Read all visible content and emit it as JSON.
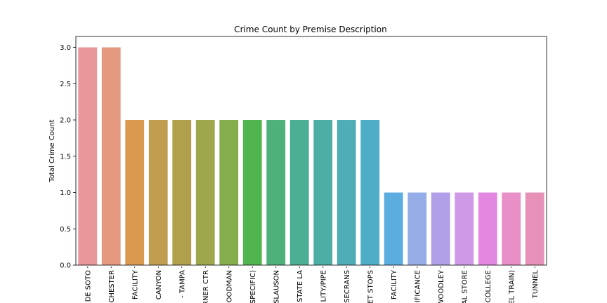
{
  "chart_data": {
    "type": "bar",
    "title": "Crime Count by Premise Description",
    "xlabel": "",
    "ylabel": "Total Crime Count",
    "ylim": [
      0,
      3.15
    ],
    "yticks": [
      "0.0",
      "0.5",
      "1.0",
      "1.5",
      "2.0",
      "2.5",
      "3.0"
    ],
    "grid": false,
    "categories": [
      "DE SOTO",
      "CHESTER",
      "FACILITY",
      "CANYON",
      "- TAMPA",
      "RNER CTR",
      "OODMAN",
      "SPECIFIC)",
      "SLAUSON",
      "STATE LA",
      "LITY/PIPE",
      "SECRANS",
      "ET STOPS",
      "FACILITY",
      "IFICANCE",
      "WOODLEY",
      "AL STORE",
      "COLLEGE",
      "EL TRAIN)",
      "TUNNEL"
    ],
    "values": [
      3,
      3,
      2,
      2,
      2,
      2,
      2,
      2,
      2,
      2,
      2,
      2,
      2,
      1,
      1,
      1,
      1,
      1,
      1,
      1
    ],
    "colors": [
      "#e8969a",
      "#e59a80",
      "#d99a50",
      "#c19d4f",
      "#b0a04c",
      "#9ea74b",
      "#86ad4b",
      "#50b44f",
      "#4eb17a",
      "#4cae93",
      "#4dada7",
      "#4fadb7",
      "#4eadc7",
      "#5bade0",
      "#95aee8",
      "#b19fe8",
      "#cf99e8",
      "#e388e0",
      "#e88fc8",
      "#e891b8"
    ]
  }
}
